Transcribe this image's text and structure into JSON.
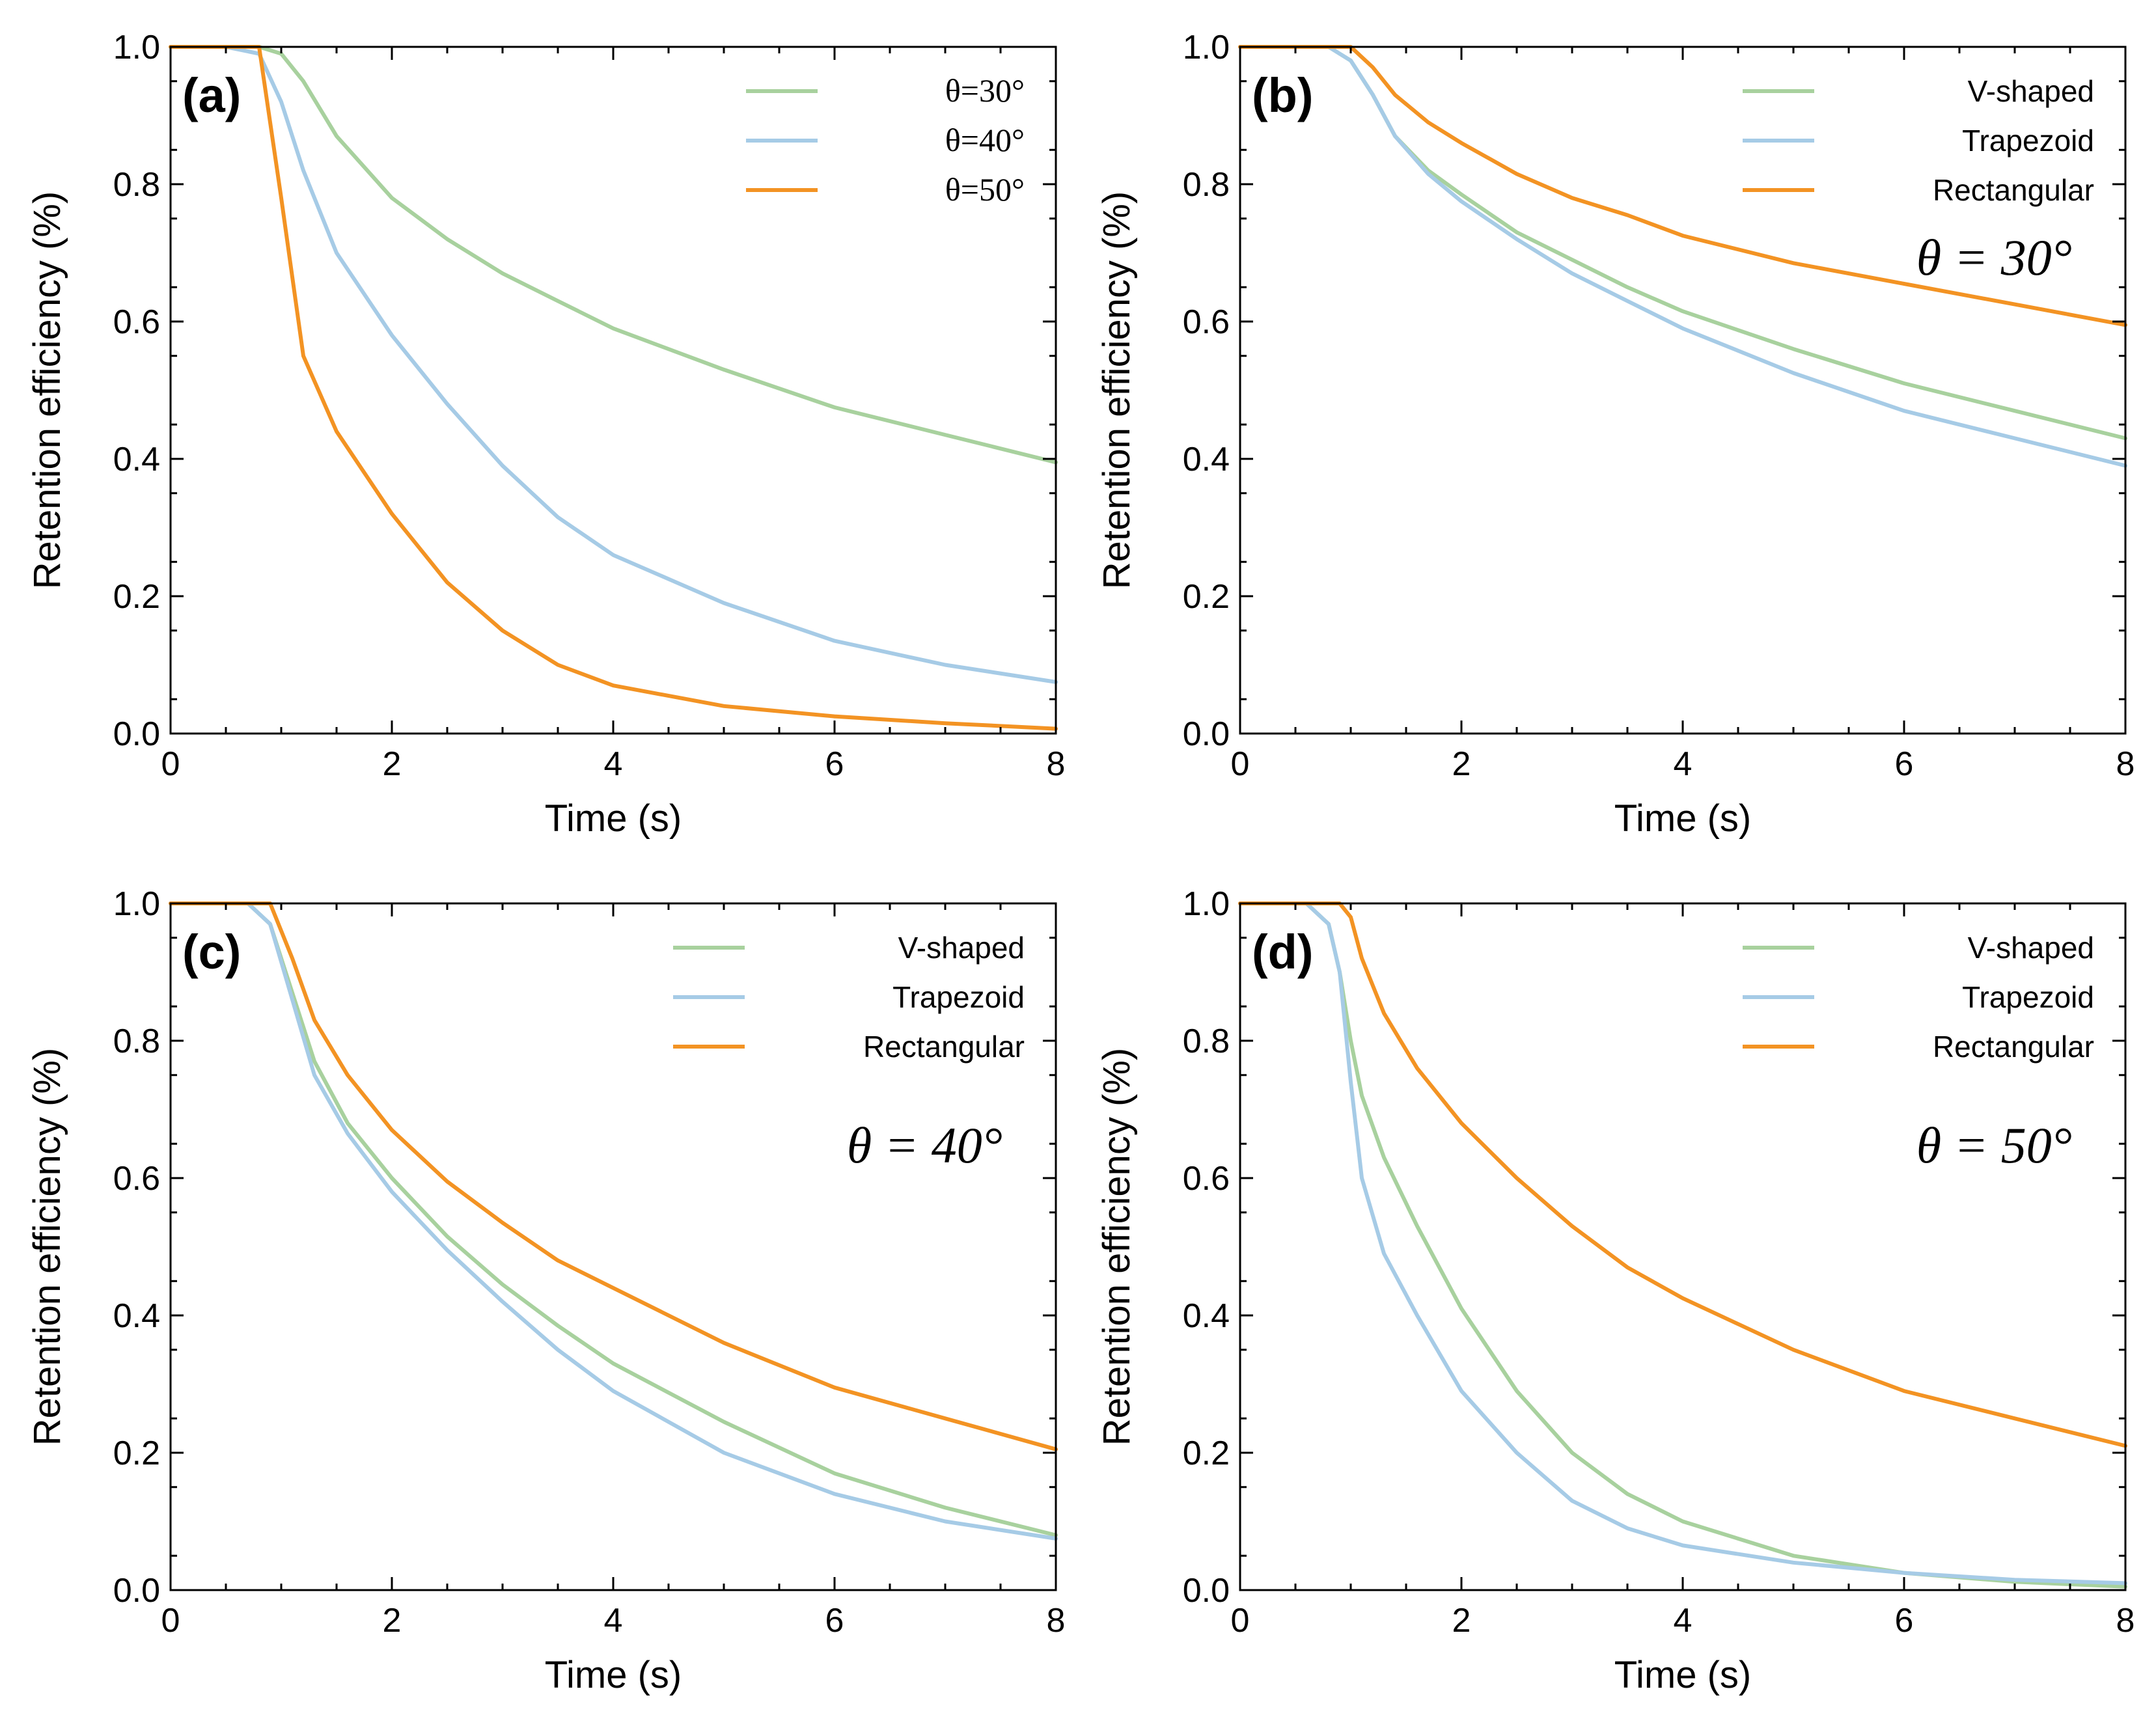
{
  "chart_data": [
    {
      "type": "line",
      "panel_label": "(a)",
      "xlabel": "Time (s)",
      "ylabel": "Retention efficiency (%)",
      "xlim": [
        0,
        8
      ],
      "ylim": [
        0,
        1
      ],
      "xticks": [
        "0",
        "2",
        "4",
        "6",
        "8"
      ],
      "yticks": [
        "0.0",
        "0.2",
        "0.4",
        "0.6",
        "0.8",
        "1.0"
      ],
      "legend_position": "top-right",
      "legend_style": "theta",
      "annotation": "",
      "x": [
        0,
        0.5,
        0.8,
        1.0,
        1.2,
        1.5,
        2,
        2.5,
        3,
        3.5,
        4,
        5,
        6,
        7,
        8
      ],
      "series": [
        {
          "name": "θ=30°",
          "color": "#a8d19e",
          "values": [
            1.0,
            1.0,
            1.0,
            0.99,
            0.95,
            0.87,
            0.78,
            0.72,
            0.67,
            0.63,
            0.59,
            0.53,
            0.475,
            0.435,
            0.395
          ]
        },
        {
          "name": "θ=40°",
          "color": "#a6cbe6",
          "values": [
            1.0,
            1.0,
            0.99,
            0.92,
            0.82,
            0.7,
            0.58,
            0.48,
            0.39,
            0.315,
            0.26,
            0.19,
            0.135,
            0.1,
            0.075
          ]
        },
        {
          "name": "θ=50°",
          "color": "#f39323",
          "values": [
            1.0,
            1.0,
            1.0,
            0.78,
            0.55,
            0.44,
            0.32,
            0.22,
            0.15,
            0.1,
            0.07,
            0.04,
            0.025,
            0.015,
            0.007
          ]
        }
      ]
    },
    {
      "type": "line",
      "panel_label": "(b)",
      "xlabel": "Time (s)",
      "ylabel": "Retention efficiency (%)",
      "xlim": [
        0,
        8
      ],
      "ylim": [
        0,
        1
      ],
      "xticks": [
        "0",
        "2",
        "4",
        "6",
        "8"
      ],
      "yticks": [
        "0.0",
        "0.2",
        "0.4",
        "0.6",
        "0.8",
        "1.0"
      ],
      "legend_position": "top-right",
      "legend_style": "sans",
      "annotation": "θ = 30°",
      "x": [
        0,
        0.8,
        1.0,
        1.2,
        1.4,
        1.7,
        2,
        2.5,
        3,
        3.5,
        4,
        5,
        6,
        7,
        8
      ],
      "series": [
        {
          "name": "V-shaped",
          "color": "#a8d19e",
          "values": [
            1.0,
            1.0,
            0.98,
            0.93,
            0.87,
            0.82,
            0.785,
            0.73,
            0.69,
            0.65,
            0.615,
            0.56,
            0.51,
            0.47,
            0.43
          ]
        },
        {
          "name": "Trapezoid",
          "color": "#a6cbe6",
          "values": [
            1.0,
            1.0,
            0.98,
            0.93,
            0.87,
            0.815,
            0.775,
            0.72,
            0.67,
            0.63,
            0.59,
            0.525,
            0.47,
            0.43,
            0.39
          ]
        },
        {
          "name": "Rectangular",
          "color": "#f39323",
          "values": [
            1.0,
            1.0,
            1.0,
            0.97,
            0.93,
            0.89,
            0.86,
            0.815,
            0.78,
            0.755,
            0.725,
            0.685,
            0.655,
            0.625,
            0.595
          ]
        }
      ]
    },
    {
      "type": "line",
      "panel_label": "(c)",
      "xlabel": "Time (s)",
      "ylabel": "Retention efficiency (%)",
      "xlim": [
        0,
        8
      ],
      "ylim": [
        0,
        1
      ],
      "xticks": [
        "0",
        "2",
        "4",
        "6",
        "8"
      ],
      "yticks": [
        "0.0",
        "0.2",
        "0.4",
        "0.6",
        "0.8",
        "1.0"
      ],
      "legend_position": "top-right",
      "legend_style": "sans",
      "annotation": "θ = 40°",
      "x": [
        0,
        0.7,
        0.9,
        1.1,
        1.3,
        1.6,
        2,
        2.5,
        3,
        3.5,
        4,
        5,
        6,
        7,
        8
      ],
      "series": [
        {
          "name": "V-shaped",
          "color": "#a8d19e",
          "values": [
            1.0,
            1.0,
            0.97,
            0.87,
            0.77,
            0.68,
            0.6,
            0.515,
            0.445,
            0.385,
            0.33,
            0.245,
            0.17,
            0.12,
            0.08
          ]
        },
        {
          "name": "Trapezoid",
          "color": "#a6cbe6",
          "values": [
            1.0,
            1.0,
            0.97,
            0.86,
            0.75,
            0.665,
            0.58,
            0.495,
            0.42,
            0.35,
            0.29,
            0.2,
            0.14,
            0.1,
            0.075
          ]
        },
        {
          "name": "Rectangular",
          "color": "#f39323",
          "values": [
            1.0,
            1.0,
            1.0,
            0.92,
            0.83,
            0.75,
            0.67,
            0.595,
            0.535,
            0.48,
            0.44,
            0.36,
            0.295,
            0.25,
            0.205
          ]
        }
      ]
    },
    {
      "type": "line",
      "panel_label": "(d)",
      "xlabel": "Time (s)",
      "ylabel": "Retention efficiency (%)",
      "xlim": [
        0,
        8
      ],
      "ylim": [
        0,
        1
      ],
      "xticks": [
        "0",
        "2",
        "4",
        "6",
        "8"
      ],
      "yticks": [
        "0.0",
        "0.2",
        "0.4",
        "0.6",
        "0.8",
        "1.0"
      ],
      "legend_position": "top-right",
      "legend_style": "sans",
      "annotation": "θ = 50°",
      "x": [
        0,
        0.6,
        0.8,
        0.9,
        1.0,
        1.1,
        1.3,
        1.6,
        2,
        2.5,
        3,
        3.5,
        4,
        5,
        6,
        7,
        8
      ],
      "series": [
        {
          "name": "V-shaped",
          "color": "#a8d19e",
          "values": [
            1.0,
            1.0,
            0.97,
            0.9,
            0.8,
            0.72,
            0.63,
            0.53,
            0.41,
            0.29,
            0.2,
            0.14,
            0.1,
            0.05,
            0.025,
            0.012,
            0.005
          ]
        },
        {
          "name": "Trapezoid",
          "color": "#a6cbe6",
          "values": [
            1.0,
            1.0,
            0.97,
            0.9,
            0.74,
            0.6,
            0.49,
            0.4,
            0.29,
            0.2,
            0.13,
            0.09,
            0.065,
            0.04,
            0.025,
            0.015,
            0.01
          ]
        },
        {
          "name": "Rectangular",
          "color": "#f39323",
          "values": [
            1.0,
            1.0,
            1.0,
            1.0,
            0.98,
            0.92,
            0.84,
            0.76,
            0.68,
            0.6,
            0.53,
            0.47,
            0.425,
            0.35,
            0.29,
            0.25,
            0.21
          ]
        }
      ]
    }
  ]
}
